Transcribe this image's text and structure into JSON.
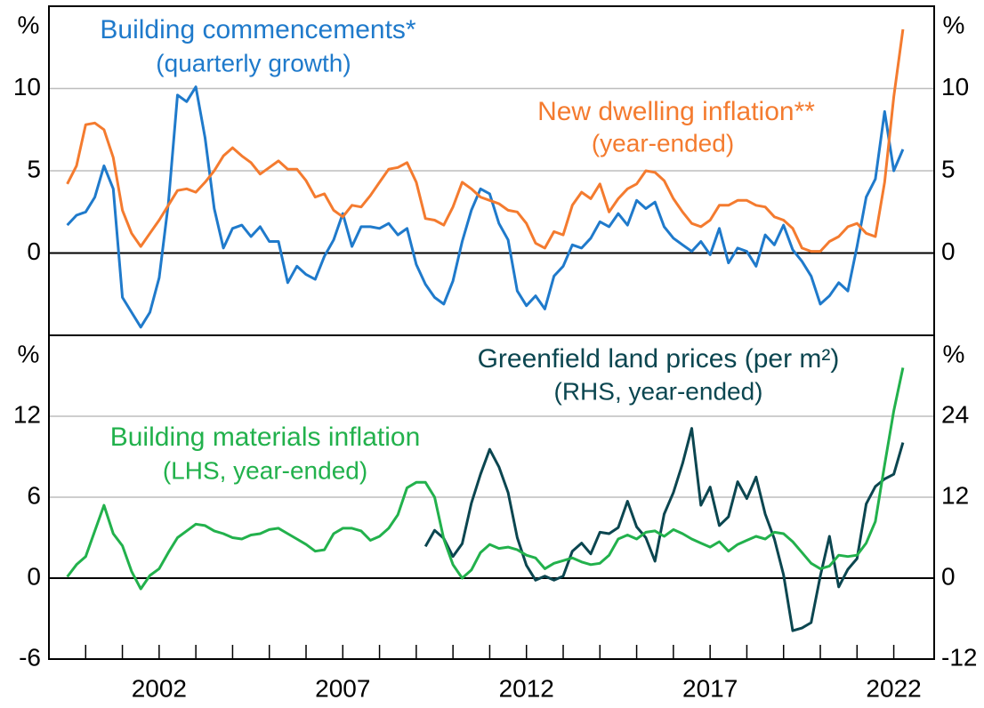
{
  "chart_data": [
    {
      "type": "line",
      "xlim": [
        1999,
        2023.1
      ],
      "ylim": [
        -5,
        15
      ],
      "yticks": [
        0,
        5,
        10
      ],
      "y2lim": [
        -5,
        15
      ],
      "y2ticks": [
        0,
        5,
        10
      ],
      "y_unit": "%",
      "y2_unit": "%",
      "grid": true,
      "series": [
        {
          "name": "Building commencements*",
          "subtitle": "(quarterly growth)",
          "color": "#1f7acb",
          "x": [
            1999.5,
            1999.75,
            2000,
            2000.25,
            2000.5,
            2000.75,
            2001,
            2001.25,
            2001.5,
            2001.75,
            2002,
            2002.25,
            2002.5,
            2002.75,
            2003,
            2003.25,
            2003.5,
            2003.75,
            2004,
            2004.25,
            2004.5,
            2004.75,
            2005,
            2005.25,
            2005.5,
            2005.75,
            2006,
            2006.25,
            2006.5,
            2006.75,
            2007,
            2007.25,
            2007.5,
            2007.75,
            2008,
            2008.25,
            2008.5,
            2008.75,
            2009,
            2009.25,
            2009.5,
            2009.75,
            2010,
            2010.25,
            2010.5,
            2010.75,
            2011,
            2011.25,
            2011.5,
            2011.75,
            2012,
            2012.25,
            2012.5,
            2012.75,
            2013,
            2013.25,
            2013.5,
            2013.75,
            2014,
            2014.25,
            2014.5,
            2014.75,
            2015,
            2015.25,
            2015.5,
            2015.75,
            2016,
            2016.25,
            2016.5,
            2016.75,
            2017,
            2017.25,
            2017.5,
            2017.75,
            2018,
            2018.25,
            2018.5,
            2018.75,
            2019,
            2019.25,
            2019.5,
            2019.75,
            2020,
            2020.25,
            2020.5,
            2020.75,
            2021,
            2021.25,
            2021.5,
            2021.75,
            2022,
            2022.25
          ],
          "values": [
            1.7,
            2.3,
            2.5,
            3.4,
            5.3,
            3.9,
            -2.7,
            -3.6,
            -4.5,
            -3.6,
            -1.5,
            3.0,
            9.6,
            9.2,
            10.1,
            7.0,
            2.7,
            0.3,
            1.5,
            1.7,
            1.0,
            1.6,
            0.7,
            0.7,
            -1.8,
            -0.8,
            -1.3,
            -1.6,
            -0.2,
            0.8,
            2.4,
            0.4,
            1.6,
            1.6,
            1.5,
            1.8,
            1.1,
            1.5,
            -0.7,
            -1.9,
            -2.7,
            -3.1,
            -1.7,
            0.7,
            2.6,
            3.9,
            3.6,
            1.8,
            0.8,
            -2.3,
            -3.2,
            -2.6,
            -3.4,
            -1.4,
            -0.8,
            0.5,
            0.3,
            0.9,
            1.9,
            1.6,
            2.4,
            1.7,
            3.2,
            2.7,
            3.1,
            1.6,
            0.9,
            0.5,
            0.1,
            0.7,
            -0.1,
            1.5,
            -0.6,
            0.3,
            0.1,
            -0.8,
            1.1,
            0.5,
            1.7,
            0.2,
            -0.5,
            -1.4,
            -3.1,
            -2.6,
            -1.8,
            -2.3,
            0.4,
            3.4,
            4.5,
            8.6,
            5.0,
            6.3
          ]
        },
        {
          "name": "New dwelling inflation**",
          "subtitle": "(year-ended)",
          "color": "#f47b2f",
          "x": [
            1999.5,
            1999.75,
            2000,
            2000.25,
            2000.5,
            2000.75,
            2001,
            2001.25,
            2001.5,
            2001.75,
            2002,
            2002.25,
            2002.5,
            2002.75,
            2003,
            2003.25,
            2003.5,
            2003.75,
            2004,
            2004.25,
            2004.5,
            2004.75,
            2005,
            2005.25,
            2005.5,
            2005.75,
            2006,
            2006.25,
            2006.5,
            2006.75,
            2007,
            2007.25,
            2007.5,
            2007.75,
            2008,
            2008.25,
            2008.5,
            2008.75,
            2009,
            2009.25,
            2009.5,
            2009.75,
            2010,
            2010.25,
            2010.5,
            2010.75,
            2011,
            2011.25,
            2011.5,
            2011.75,
            2012,
            2012.25,
            2012.5,
            2012.75,
            2013,
            2013.25,
            2013.5,
            2013.75,
            2014,
            2014.25,
            2014.5,
            2014.75,
            2015,
            2015.25,
            2015.5,
            2015.75,
            2016,
            2016.25,
            2016.5,
            2016.75,
            2017,
            2017.25,
            2017.5,
            2017.75,
            2018,
            2018.25,
            2018.5,
            2018.75,
            2019,
            2019.25,
            2019.5,
            2019.75,
            2020,
            2020.25,
            2020.5,
            2020.75,
            2021,
            2021.25,
            2021.5,
            2021.75,
            2022,
            2022.25
          ],
          "values": [
            4.2,
            5.3,
            7.8,
            7.9,
            7.5,
            5.8,
            2.6,
            1.2,
            0.4,
            1.2,
            2.0,
            2.9,
            3.8,
            3.9,
            3.7,
            4.3,
            5.0,
            5.9,
            6.4,
            5.9,
            5.5,
            4.8,
            5.2,
            5.6,
            5.1,
            5.1,
            4.4,
            3.4,
            3.6,
            2.6,
            2.2,
            2.9,
            2.8,
            3.5,
            4.3,
            5.1,
            5.2,
            5.5,
            4.3,
            2.1,
            2.0,
            1.7,
            2.8,
            4.3,
            3.9,
            3.4,
            3.2,
            3.0,
            2.6,
            2.5,
            1.8,
            0.6,
            0.3,
            1.3,
            1.1,
            2.9,
            3.7,
            3.3,
            4.2,
            2.5,
            3.3,
            3.9,
            4.2,
            5.0,
            4.9,
            4.4,
            3.3,
            2.5,
            1.8,
            1.6,
            2.0,
            2.9,
            2.9,
            3.2,
            3.2,
            2.9,
            2.8,
            2.2,
            2.0,
            1.5,
            0.3,
            0.1,
            0.1,
            0.7,
            1.0,
            1.6,
            1.8,
            1.2,
            1.0,
            4.3,
            9.5,
            13.6
          ]
        }
      ]
    },
    {
      "type": "line",
      "xlim": [
        1999,
        2023.1
      ],
      "ylim": [
        -6,
        18
      ],
      "yticks": [
        -6,
        0,
        6,
        12
      ],
      "y2lim": [
        -12,
        36
      ],
      "y2ticks": [
        -12,
        0,
        12,
        24
      ],
      "y_unit": "%",
      "y2_unit": "%",
      "grid": true,
      "xticks": [
        2002,
        2007,
        2012,
        2017,
        2022
      ],
      "xminor_ticks": [
        2000,
        2001,
        2002,
        2003,
        2004,
        2005,
        2006,
        2007,
        2008,
        2009,
        2010,
        2011,
        2012,
        2013,
        2014,
        2015,
        2016,
        2017,
        2018,
        2019,
        2020,
        2021,
        2022
      ],
      "series": [
        {
          "name": "Greenfield land prices (per m²)",
          "subtitle": "(RHS, year-ended)",
          "color": "#0b4650",
          "axis": "y2",
          "x": [
            2009.25,
            2009.5,
            2009.75,
            2010,
            2010.25,
            2010.5,
            2010.75,
            2011,
            2011.25,
            2011.5,
            2011.75,
            2012,
            2012.25,
            2012.5,
            2012.75,
            2013,
            2013.25,
            2013.5,
            2013.75,
            2014,
            2014.25,
            2014.5,
            2014.75,
            2015,
            2015.25,
            2015.5,
            2015.75,
            2016,
            2016.25,
            2016.5,
            2016.75,
            2017,
            2017.25,
            2017.5,
            2017.75,
            2018,
            2018.25,
            2018.5,
            2018.75,
            2019,
            2019.25,
            2019.5,
            2019.75,
            2020,
            2020.25,
            2020.5,
            2020.75,
            2021,
            2021.25,
            2021.5,
            2021.75,
            2022,
            2022.25
          ],
          "values": [
            4.7,
            7.1,
            5.9,
            3.2,
            5.1,
            11.1,
            15.4,
            19.1,
            16.5,
            12.7,
            6.0,
            1.9,
            -0.3,
            0.3,
            -0.3,
            0.3,
            4.0,
            5.2,
            3.6,
            6.8,
            6.6,
            7.5,
            11.4,
            7.6,
            6.0,
            2.5,
            9.5,
            12.7,
            17.0,
            22.2,
            10.8,
            13.5,
            7.8,
            9.1,
            14.3,
            11.8,
            15.0,
            9.5,
            5.8,
            0.5,
            -7.8,
            -7.4,
            -6.6,
            0.3,
            6.2,
            -1.3,
            1.3,
            2.9,
            11.0,
            13.6,
            14.7,
            15.4,
            20.1
          ]
        },
        {
          "name": "Building materials inflation",
          "subtitle": "(LHS, year-ended)",
          "color": "#22b14c",
          "x": [
            1999.5,
            1999.75,
            2000,
            2000.25,
            2000.5,
            2000.75,
            2001,
            2001.25,
            2001.5,
            2001.75,
            2002,
            2002.25,
            2002.5,
            2002.75,
            2003,
            2003.25,
            2003.5,
            2003.75,
            2004,
            2004.25,
            2004.5,
            2004.75,
            2005,
            2005.25,
            2005.5,
            2005.75,
            2006,
            2006.25,
            2006.5,
            2006.75,
            2007,
            2007.25,
            2007.5,
            2007.75,
            2008,
            2008.25,
            2008.5,
            2008.75,
            2009,
            2009.25,
            2009.5,
            2009.75,
            2010,
            2010.25,
            2010.5,
            2010.75,
            2011,
            2011.25,
            2011.5,
            2011.75,
            2012,
            2012.25,
            2012.5,
            2012.75,
            2013,
            2013.25,
            2013.5,
            2013.75,
            2014,
            2014.25,
            2014.5,
            2014.75,
            2015,
            2015.25,
            2015.5,
            2015.75,
            2016,
            2016.25,
            2016.5,
            2016.75,
            2017,
            2017.25,
            2017.5,
            2017.75,
            2018,
            2018.25,
            2018.5,
            2018.75,
            2019,
            2019.25,
            2019.5,
            2019.75,
            2020,
            2020.25,
            2020.5,
            2020.75,
            2021,
            2021.25,
            2021.5,
            2021.75,
            2022,
            2022.25
          ],
          "values": [
            0.1,
            1.0,
            1.6,
            3.5,
            5.4,
            3.3,
            2.4,
            0.5,
            -0.8,
            0.2,
            0.7,
            1.9,
            3.0,
            3.5,
            4.0,
            3.9,
            3.5,
            3.3,
            3.0,
            2.9,
            3.2,
            3.3,
            3.6,
            3.7,
            3.3,
            2.9,
            2.5,
            2.0,
            2.1,
            3.3,
            3.7,
            3.7,
            3.5,
            2.8,
            3.1,
            3.7,
            4.7,
            6.7,
            7.1,
            7.1,
            6.0,
            2.9,
            1.0,
            0.0,
            0.6,
            1.9,
            2.5,
            2.2,
            2.3,
            2.1,
            1.7,
            1.5,
            0.7,
            1.1,
            1.3,
            1.5,
            1.2,
            1.0,
            1.1,
            1.7,
            2.9,
            3.2,
            2.9,
            3.4,
            3.5,
            3.1,
            3.6,
            3.3,
            2.9,
            2.6,
            2.3,
            2.7,
            2.0,
            2.5,
            2.8,
            3.1,
            2.9,
            3.4,
            3.3,
            2.7,
            1.9,
            1.1,
            0.7,
            0.9,
            1.7,
            1.6,
            1.7,
            2.6,
            4.2,
            8.4,
            12.4,
            15.6
          ]
        }
      ]
    }
  ]
}
